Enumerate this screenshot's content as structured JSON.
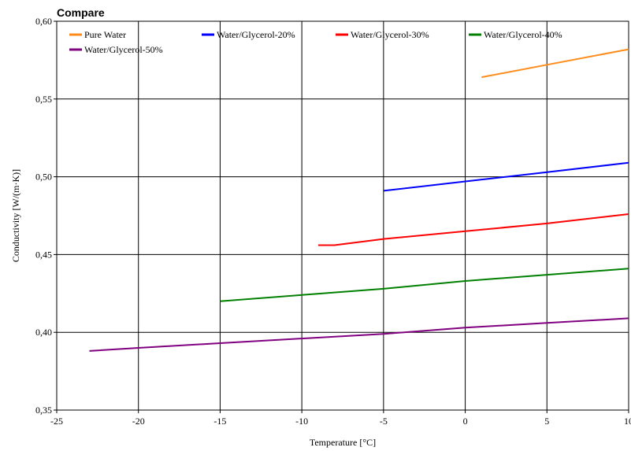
{
  "chart_data": {
    "type": "line",
    "title": "Compare",
    "xlabel": "Temperature [°C]",
    "ylabel": "Conductivity [W/(m·K)]",
    "xlim": [
      -25,
      10
    ],
    "ylim": [
      0.35,
      0.6
    ],
    "x_ticks": [
      -25,
      -20,
      -15,
      -10,
      -5,
      0,
      5,
      10
    ],
    "x_tick_labels": [
      "-25",
      "-20",
      "-15",
      "-10",
      "-5",
      "0",
      "5",
      "10"
    ],
    "y_ticks": [
      0.35,
      0.4,
      0.45,
      0.5,
      0.55,
      0.6
    ],
    "y_tick_labels": [
      "0,35",
      "0,40",
      "0,45",
      "0,50",
      "0,55",
      "0,60"
    ],
    "grid": true,
    "legend_position": "top-left inside",
    "series": [
      {
        "name": "Pure Water",
        "color": "#ff8c1a",
        "x": [
          1,
          5,
          10
        ],
        "y": [
          0.564,
          0.572,
          0.582
        ]
      },
      {
        "name": "Water/Glycerol-20%",
        "color": "#0000ff",
        "x": [
          -5,
          0,
          5,
          10
        ],
        "y": [
          0.491,
          0.497,
          0.503,
          0.509
        ]
      },
      {
        "name": "Water/Glycerol-30%",
        "color": "#ff0000",
        "x": [
          -9,
          -8,
          -5,
          0,
          5,
          10
        ],
        "y": [
          0.456,
          0.456,
          0.46,
          0.465,
          0.47,
          0.476
        ]
      },
      {
        "name": "Water/Glycerol-40%",
        "color": "#008000",
        "x": [
          -15,
          -10,
          -5,
          0,
          5,
          10
        ],
        "y": [
          0.42,
          0.424,
          0.428,
          0.433,
          0.437,
          0.441
        ]
      },
      {
        "name": "Water/Glycerol-50%",
        "color": "#800080",
        "x": [
          -23,
          -20,
          -15,
          -10,
          -5,
          0,
          5,
          10
        ],
        "y": [
          0.388,
          0.39,
          0.393,
          0.396,
          0.399,
          0.403,
          0.406,
          0.409
        ]
      }
    ]
  }
}
